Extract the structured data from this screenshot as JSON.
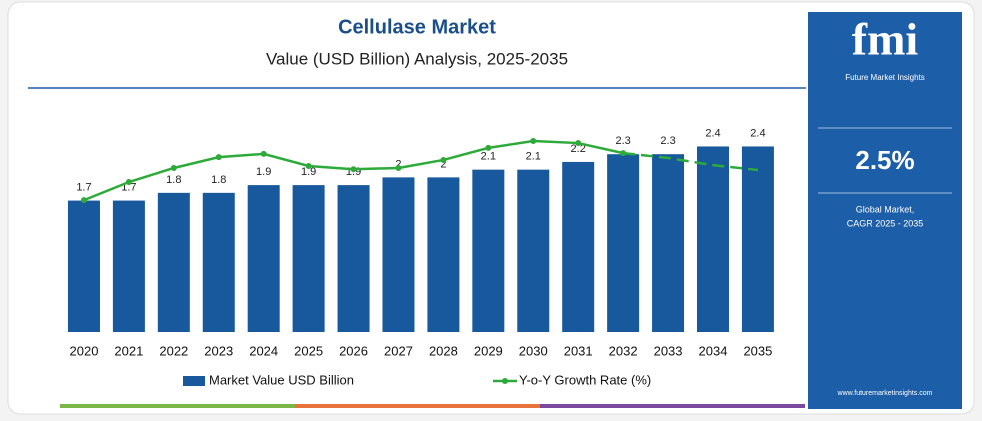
{
  "chart_data": {
    "type": "bar",
    "title": "Cellulase Market",
    "subtitle": "Value (USD Billion) Analysis, 2025-2035",
    "categories": [
      "2020",
      "2021",
      "2022",
      "2023",
      "2024",
      "2025",
      "2026",
      "2027",
      "2028",
      "2029",
      "2030",
      "2031",
      "2032",
      "2033",
      "2034",
      "2035"
    ],
    "series": [
      {
        "name": "Market Value USD Billion",
        "type": "bar",
        "color": "#17599c",
        "values": [
          1.7,
          1.7,
          1.8,
          1.8,
          1.9,
          1.9,
          1.9,
          2.0,
          2.0,
          2.1,
          2.1,
          2.2,
          2.3,
          2.3,
          2.4,
          2.4
        ]
      },
      {
        "name": "Y-o-Y Growth Rate (%)",
        "type": "line",
        "color": "#2eaa3a",
        "axis": "y2",
        "dashed_after": "2032",
        "values": [
          3.28,
          3.73,
          4.08,
          4.35,
          4.43,
          4.13,
          4.05,
          4.08,
          4.28,
          4.58,
          4.75,
          4.7,
          4.45,
          4.33,
          4.15,
          4.03
        ]
      }
    ],
    "ylim": [
      0,
      2.6
    ],
    "y2lim": [
      0,
      5
    ]
  },
  "sidebar": {
    "logo": "fmi",
    "brand": "Future Market Insights",
    "cagr": "2.5%",
    "cagr_caption": [
      "Global Market,",
      "CAGR 2025 - 2035"
    ],
    "website": "www.futuremarketinsights.com"
  }
}
